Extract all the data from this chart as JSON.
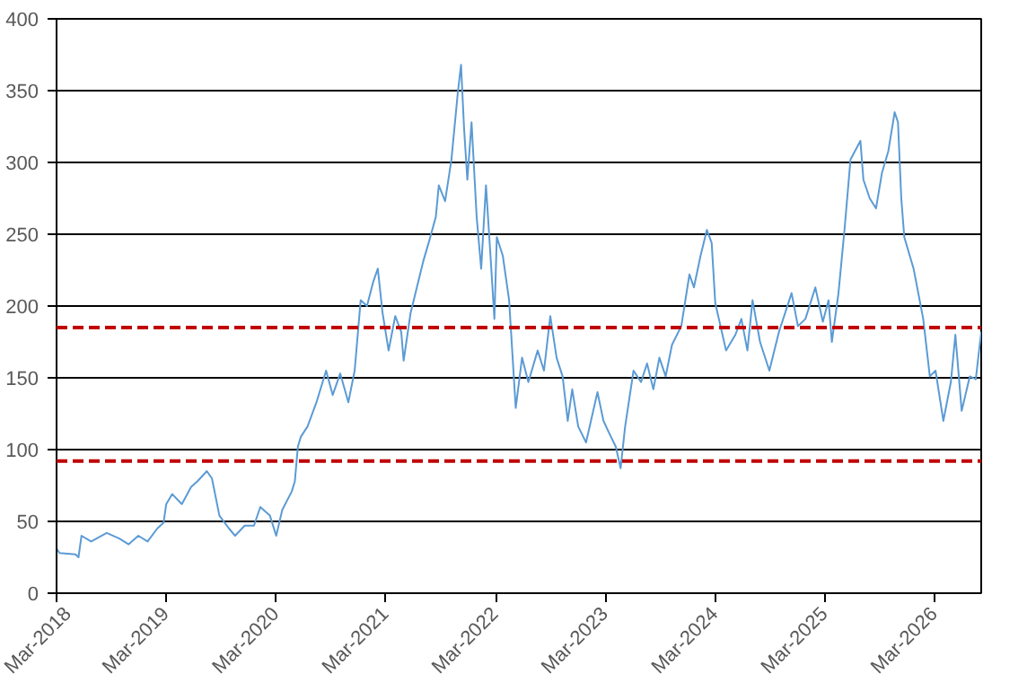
{
  "chart_data": {
    "type": "line",
    "x": [
      "2018-03-01",
      "2018-03-11",
      "2018-05-03",
      "2018-05-13",
      "2018-05-23",
      "2018-06-24",
      "2018-08-15",
      "2018-09-26",
      "2018-10-27",
      "2018-11-28",
      "2018-12-29",
      "2019-01-30",
      "2019-02-20",
      "2019-03-01",
      "2019-03-21",
      "2019-04-22",
      "2019-05-23",
      "2019-06-13",
      "2019-07-14",
      "2019-07-31",
      "2019-08-25",
      "2019-09-26",
      "2019-10-16",
      "2019-11-17",
      "2019-12-18",
      "2020-01-08",
      "2020-02-09",
      "2020-03-01",
      "2020-03-21",
      "2020-04-22",
      "2020-05-02",
      "2020-05-12",
      "2020-05-22",
      "2020-06-13",
      "2020-07-13",
      "2020-08-14",
      "2020-09-05",
      "2020-09-30",
      "2020-10-27",
      "2020-11-17",
      "2020-12-07",
      "2020-12-28",
      "2021-01-18",
      "2021-02-02",
      "2021-02-18",
      "2021-03-10",
      "2021-04-01",
      "2021-04-21",
      "2021-04-29",
      "2021-05-22",
      "2021-06-12",
      "2021-07-03",
      "2021-07-24",
      "2021-08-14",
      "2021-08-24",
      "2021-09-14",
      "2021-10-05",
      "2021-10-26",
      "2021-11-06",
      "2021-11-16",
      "2021-11-27",
      "2021-12-11",
      "2021-12-28",
      "2022-01-12",
      "2022-01-28",
      "2022-02-12",
      "2022-02-25",
      "2022-03-05",
      "2022-03-25",
      "2022-04-15",
      "2022-05-07",
      "2022-05-28",
      "2022-06-18",
      "2022-07-19",
      "2022-08-09",
      "2022-08-30",
      "2022-09-20",
      "2022-10-10",
      "2022-10-27",
      "2022-11-11",
      "2022-12-01",
      "2022-12-27",
      "2023-02-03",
      "2023-02-23",
      "2023-03-15",
      "2023-04-05",
      "2023-04-21",
      "2023-05-06",
      "2023-06-03",
      "2023-06-28",
      "2023-07-18",
      "2023-08-08",
      "2023-08-28",
      "2023-09-18",
      "2023-10-09",
      "2023-11-09",
      "2023-12-06",
      "2023-12-21",
      "2024-01-12",
      "2024-02-02",
      "2024-02-18",
      "2024-03-01",
      "2024-04-06",
      "2024-05-07",
      "2024-05-27",
      "2024-06-16",
      "2024-07-03",
      "2024-07-28",
      "2024-08-28",
      "2024-09-29",
      "2024-11-10",
      "2024-12-01",
      "2024-12-26",
      "2025-01-28",
      "2025-02-22",
      "2025-03-13",
      "2025-03-24",
      "2025-04-15",
      "2025-05-05",
      "2025-05-25",
      "2025-06-27",
      "2025-07-07",
      "2025-07-28",
      "2025-08-18",
      "2025-09-07",
      "2025-09-28",
      "2025-10-19",
      "2025-10-30",
      "2025-11-10",
      "2025-11-20",
      "2025-12-21",
      "2026-01-22",
      "2026-02-13",
      "2026-03-04",
      "2026-03-30",
      "2026-04-24",
      "2026-05-09",
      "2026-05-30",
      "2026-06-26",
      "2026-07-16",
      "2026-08-03"
    ],
    "series": [
      {
        "color": "#5b9bd5",
        "values": [
          31,
          28,
          27,
          25,
          40,
          36,
          42,
          38,
          34,
          40,
          36,
          45,
          49,
          62,
          69,
          62,
          74,
          78,
          85,
          80,
          54,
          45,
          40,
          47,
          47,
          60,
          54,
          40,
          58,
          71,
          78,
          102,
          109,
          116,
          133,
          155,
          138,
          153,
          133,
          155,
          204,
          200,
          217,
          226,
          195,
          169,
          193,
          182,
          162,
          195,
          213,
          231,
          246,
          262,
          284,
          273,
          302,
          348,
          368,
          324,
          288,
          328,
          262,
          226,
          284,
          235,
          191,
          248,
          235,
          204,
          129,
          164,
          147,
          169,
          155,
          193,
          164,
          151,
          120,
          142,
          116,
          105,
          140,
          120,
          111,
          102,
          87,
          116,
          155,
          147,
          160,
          142,
          164,
          151,
          173,
          186,
          222,
          213,
          235,
          253,
          244,
          202,
          169,
          180,
          191,
          169,
          204,
          175,
          155,
          182,
          209,
          186,
          191,
          213,
          189,
          204,
          175,
          209,
          253,
          302,
          315,
          288,
          275,
          268,
          293,
          308,
          335,
          328,
          275,
          248,
          226,
          191,
          151,
          155,
          120,
          147,
          180,
          127,
          151,
          149,
          182
        ]
      }
    ],
    "xlim": [
      "2018-03-01",
      "2026-08-03"
    ],
    "xticks": [
      {
        "value": "2018-03-01",
        "label": "Mar-2018"
      },
      {
        "value": "2019-03-01",
        "label": "Mar-2019"
      },
      {
        "value": "2020-03-01",
        "label": "Mar-2020"
      },
      {
        "value": "2021-03-01",
        "label": "Mar-2021"
      },
      {
        "value": "2022-03-01",
        "label": "Mar-2022"
      },
      {
        "value": "2023-03-01",
        "label": "Mar-2023"
      },
      {
        "value": "2024-03-01",
        "label": "Mar-2024"
      },
      {
        "value": "2025-03-01",
        "label": "Mar-2025"
      },
      {
        "value": "2026-03-01",
        "label": "Mar-2026"
      }
    ],
    "ylim": [
      0,
      400
    ],
    "yticks": [
      0,
      50,
      100,
      150,
      200,
      250,
      300,
      350,
      400
    ],
    "grid": "y",
    "line_style": "solid",
    "marker": "none",
    "ref_lines": [
      {
        "axis": "y",
        "value": 185,
        "color": "#c00000",
        "line_style": "dashed"
      },
      {
        "axis": "y",
        "value": 92,
        "color": "#c00000",
        "line_style": "dashed"
      }
    ]
  }
}
